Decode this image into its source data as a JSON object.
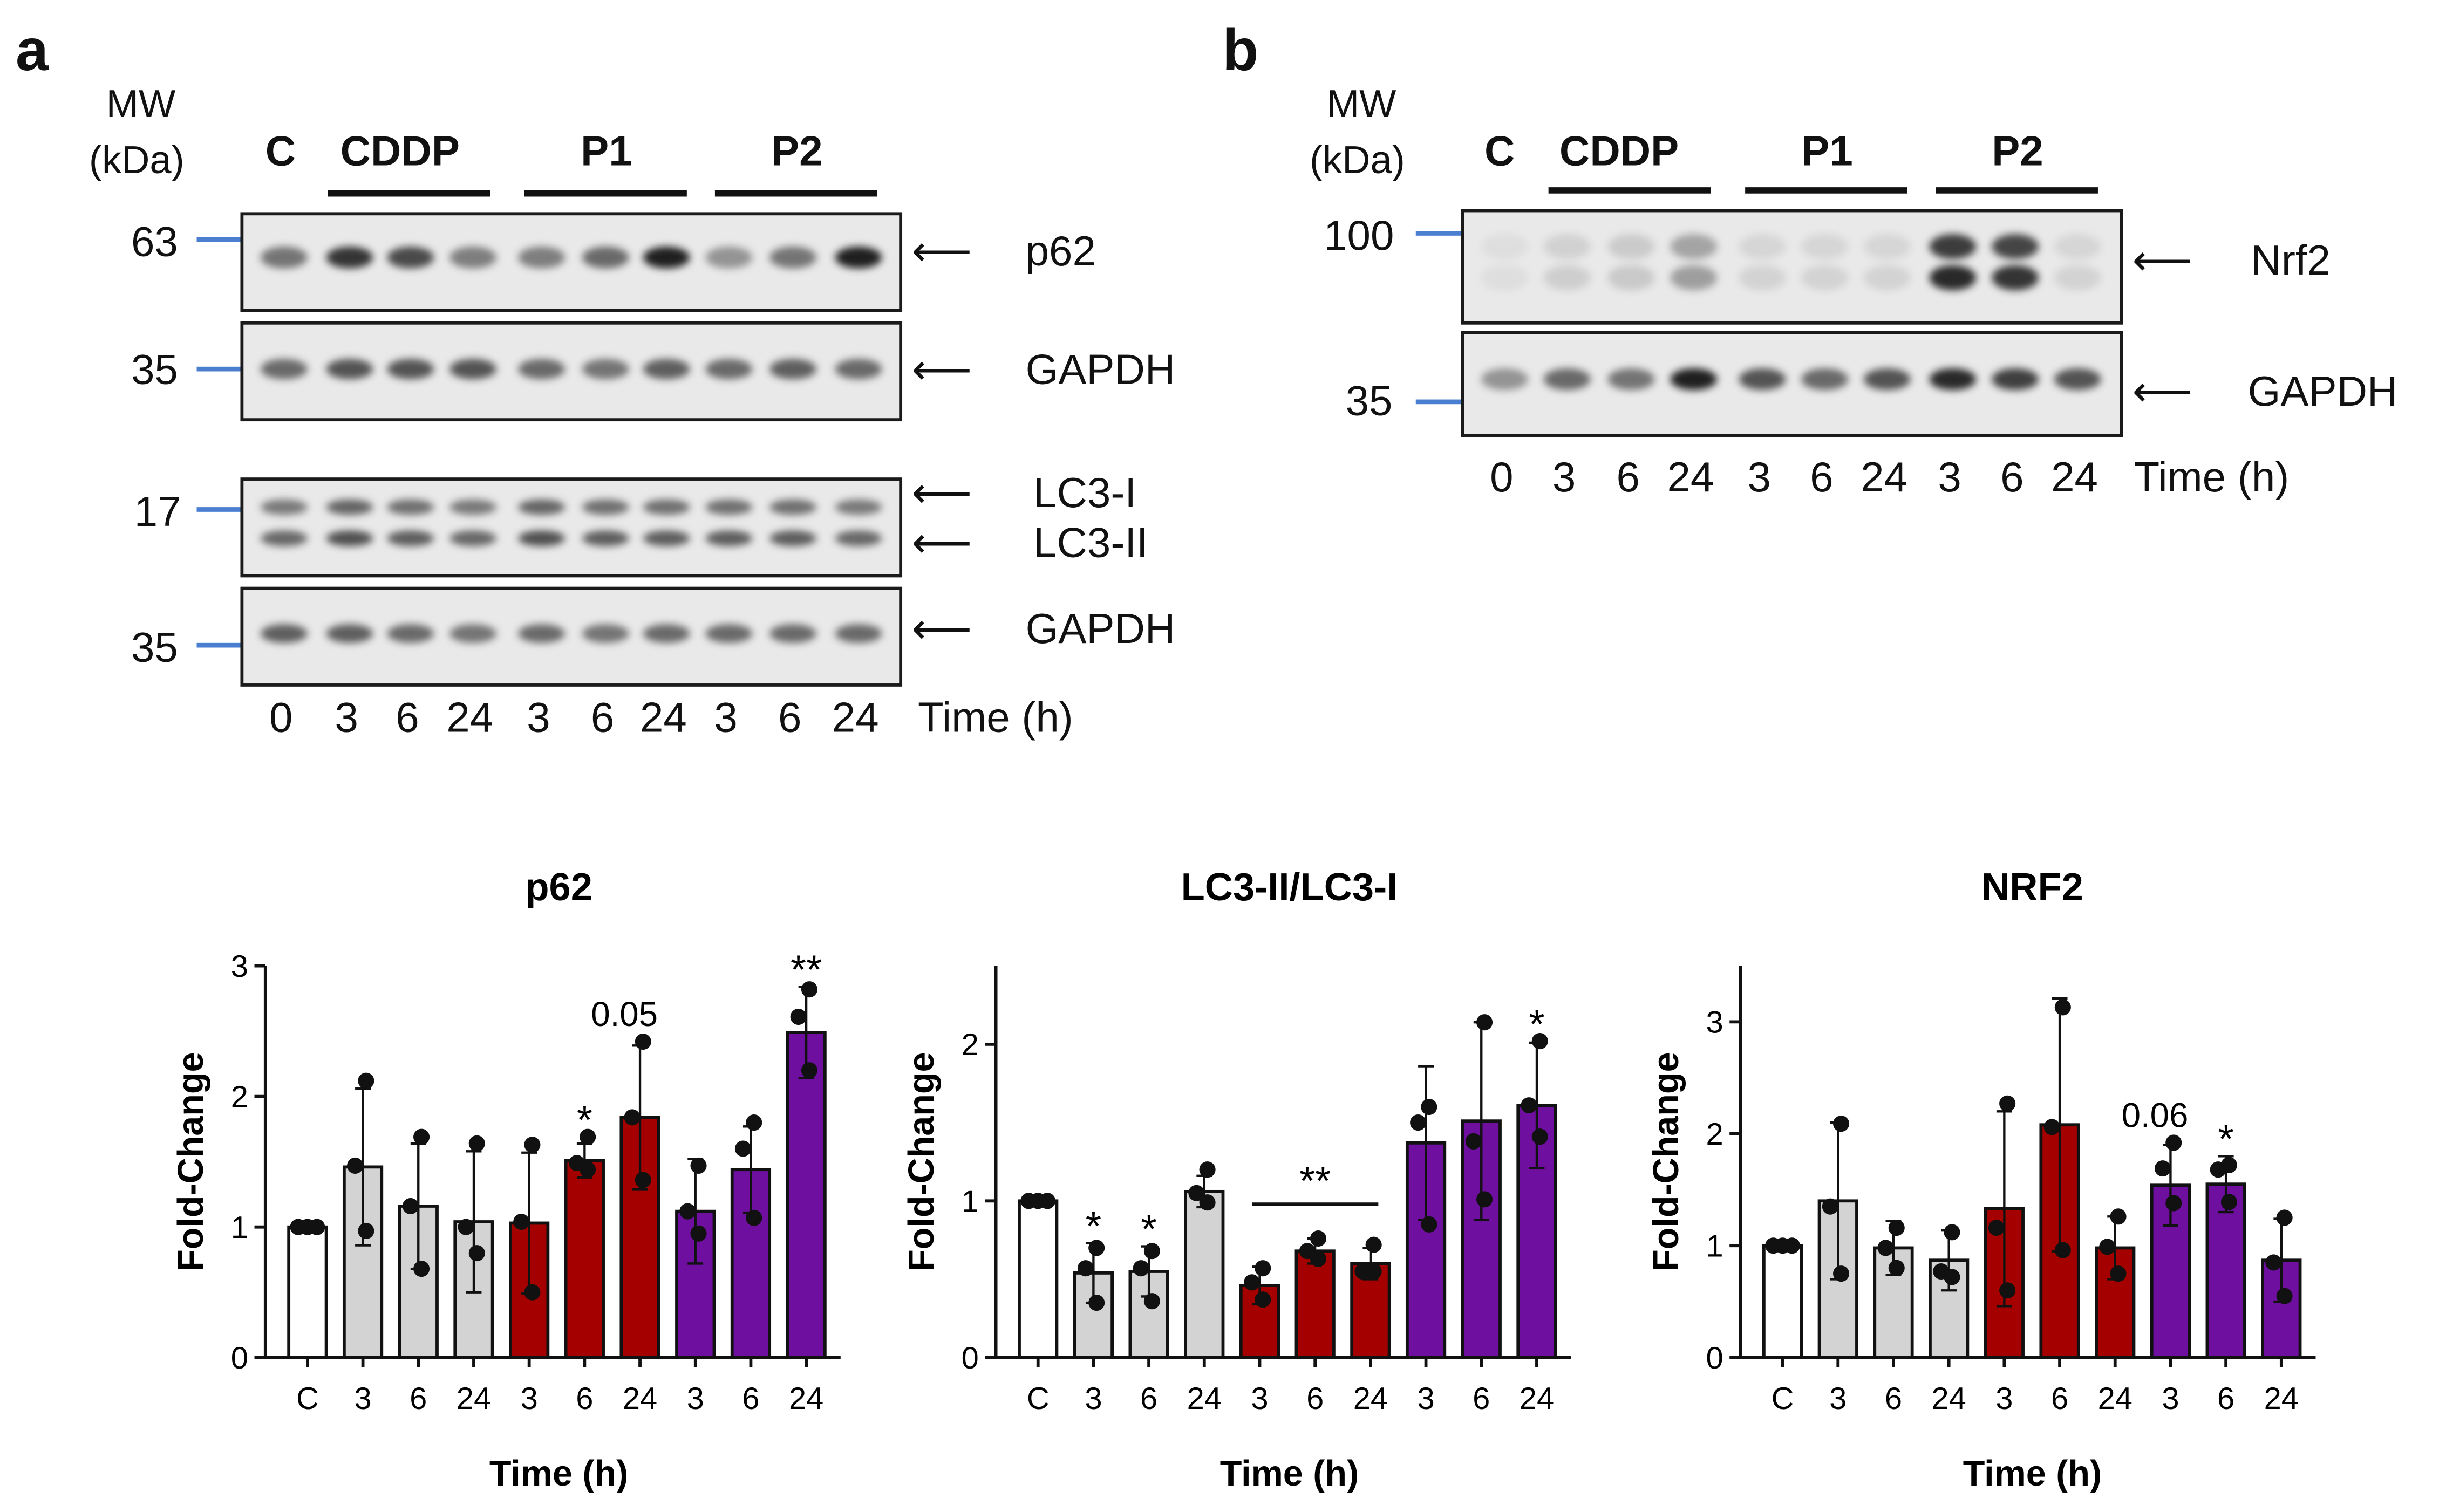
{
  "panel_a": {
    "letter": "a",
    "mw_header": [
      "MW",
      "(kDa)"
    ],
    "lane_headers": [
      "C",
      "CDDP",
      "P1",
      "P2"
    ],
    "blots": [
      {
        "name": "p62",
        "mw": "63",
        "labels": [
          "p62"
        ],
        "bands": [
          0.55,
          0.85,
          0.75,
          0.5,
          0.5,
          0.6,
          0.95,
          0.4,
          0.55,
          0.95
        ]
      },
      {
        "name": "GAPDH",
        "mw": "35",
        "labels": [
          "GAPDH"
        ],
        "bands": [
          0.6,
          0.7,
          0.7,
          0.7,
          0.6,
          0.55,
          0.65,
          0.6,
          0.65,
          0.6
        ]
      },
      {
        "name": "LC3",
        "mw": "17",
        "labels": [
          "LC3-I",
          "LC3-II"
        ],
        "bands": [
          0.55,
          0.65,
          0.6,
          0.55,
          0.65,
          0.6,
          0.6,
          0.6,
          0.6,
          0.55
        ]
      },
      {
        "name": "GAPDH",
        "mw": "35",
        "labels": [
          "GAPDH"
        ],
        "bands": [
          0.65,
          0.65,
          0.6,
          0.55,
          0.6,
          0.55,
          0.6,
          0.6,
          0.6,
          0.6
        ]
      }
    ],
    "time_labels": [
      "0",
      "3",
      "6",
      "24",
      "3",
      "6",
      "24",
      "3",
      "6",
      "24"
    ],
    "time_title": "Time (h)"
  },
  "panel_b": {
    "letter": "b",
    "mw_header": [
      "MW",
      "(kDa)"
    ],
    "lane_headers": [
      "C",
      "CDDP",
      "P1",
      "P2"
    ],
    "blots": [
      {
        "name": "Nrf2",
        "mw": "100",
        "labels": [
          "Nrf2"
        ],
        "bands": [
          0.05,
          0.12,
          0.15,
          0.35,
          0.1,
          0.1,
          0.1,
          0.9,
          0.85,
          0.1
        ]
      },
      {
        "name": "GAPDH",
        "mw": "35",
        "labels": [
          "GAPDH"
        ],
        "bands": [
          0.4,
          0.6,
          0.55,
          0.95,
          0.7,
          0.6,
          0.7,
          0.9,
          0.8,
          0.7
        ]
      }
    ],
    "time_labels": [
      "0",
      "3",
      "6",
      "24",
      "3",
      "6",
      "24",
      "3",
      "6",
      "24"
    ],
    "time_title": "Time (h)"
  },
  "colors": {
    "control": "#ffffff",
    "CDDP": "#d3d3d3",
    "P1": "#a50000",
    "P2": "#6f0fa0",
    "mw_tick": "#4a7fd0"
  },
  "chart_data": [
    {
      "type": "bar",
      "title": "p62",
      "xlabel": "Time (h)",
      "ylabel": "Fold-Change",
      "ylim": [
        0,
        3
      ],
      "yticks": [
        "0",
        "1",
        "2",
        "3"
      ],
      "categories": [
        "C",
        "3",
        "6",
        "24",
        "3",
        "6",
        "24",
        "3",
        "6",
        "24"
      ],
      "groups": [
        "control",
        "CDDP",
        "CDDP",
        "CDDP",
        "P1",
        "P1",
        "P1",
        "P2",
        "P2",
        "P2"
      ],
      "values": [
        1.0,
        1.46,
        1.16,
        1.04,
        1.03,
        1.51,
        1.84,
        1.12,
        1.44,
        2.49
      ],
      "errors": [
        0.0,
        0.6,
        0.48,
        0.54,
        0.54,
        0.13,
        0.55,
        0.4,
        0.33,
        0.35
      ],
      "points": [
        [
          1.0,
          1.0,
          1.0
        ],
        [
          2.12,
          1.47,
          0.97
        ],
        [
          1.69,
          1.16,
          0.68
        ],
        [
          1.64,
          1.0,
          0.8
        ],
        [
          1.63,
          1.04,
          0.5
        ],
        [
          1.69,
          1.49,
          1.44
        ],
        [
          2.42,
          1.84,
          1.36
        ],
        [
          1.47,
          1.12,
          0.95
        ],
        [
          1.8,
          1.6,
          1.07
        ],
        [
          2.82,
          2.61,
          2.2
        ]
      ],
      "annotations": [
        {
          "index": 5,
          "text": "*"
        },
        {
          "index": 6,
          "text": "0.05"
        },
        {
          "index": 9,
          "text": "**"
        }
      ]
    },
    {
      "type": "bar",
      "title": "LC3-II/LC3-I",
      "xlabel": "Time (h)",
      "ylabel": "Fold-Change",
      "ylim": [
        0,
        2.5
      ],
      "yticks": [
        "0",
        "1",
        "2"
      ],
      "categories": [
        "C",
        "3",
        "6",
        "24",
        "3",
        "6",
        "24",
        "3",
        "6",
        "24"
      ],
      "groups": [
        "control",
        "CDDP",
        "CDDP",
        "CDDP",
        "P1",
        "P1",
        "P1",
        "P2",
        "P2",
        "P2"
      ],
      "values": [
        1.0,
        0.54,
        0.55,
        1.06,
        0.46,
        0.68,
        0.6,
        1.37,
        1.51,
        1.61
      ],
      "errors": [
        0.0,
        0.19,
        0.16,
        0.1,
        0.12,
        0.08,
        0.1,
        0.49,
        0.63,
        0.4
      ],
      "points": [
        [
          1.0,
          1.0,
          1.0
        ],
        [
          0.7,
          0.57,
          0.35
        ],
        [
          0.68,
          0.57,
          0.36
        ],
        [
          1.2,
          1.05,
          0.99
        ],
        [
          0.57,
          0.48,
          0.37
        ],
        [
          0.76,
          0.68,
          0.63
        ],
        [
          0.72,
          0.55,
          0.55
        ],
        [
          1.6,
          1.5,
          0.85
        ],
        [
          2.14,
          1.38,
          1.01
        ],
        [
          2.02,
          1.61,
          1.41
        ]
      ],
      "annotations": [
        {
          "index": 1,
          "text": "*"
        },
        {
          "index": 2,
          "text": "*"
        },
        {
          "index": 9,
          "text": "*"
        }
      ],
      "brackets": [
        {
          "from": 4,
          "to": 6,
          "text": "**"
        }
      ]
    },
    {
      "type": "bar",
      "title": "NRF2",
      "xlabel": "Time (h)",
      "ylabel": "Fold-Change",
      "ylim": [
        0,
        3.5
      ],
      "yticks": [
        "0",
        "1",
        "2",
        "3"
      ],
      "categories": [
        "C",
        "3",
        "6",
        "24",
        "3",
        "6",
        "24",
        "3",
        "6",
        "24"
      ],
      "groups": [
        "control",
        "CDDP",
        "CDDP",
        "CDDP",
        "P1",
        "P1",
        "P1",
        "P2",
        "P2",
        "P2"
      ],
      "values": [
        1.0,
        1.4,
        0.98,
        0.87,
        1.33,
        2.08,
        0.98,
        1.54,
        1.55,
        0.87
      ],
      "errors": [
        0.0,
        0.7,
        0.24,
        0.27,
        0.87,
        1.13,
        0.28,
        0.36,
        0.25,
        0.37
      ],
      "points": [
        [
          1.0,
          1.0,
          1.0
        ],
        [
          2.09,
          1.35,
          0.75
        ],
        [
          1.16,
          0.98,
          0.8
        ],
        [
          1.12,
          0.77,
          0.72
        ],
        [
          2.27,
          1.16,
          0.6
        ],
        [
          3.13,
          2.06,
          0.96
        ],
        [
          1.26,
          0.99,
          0.75
        ],
        [
          1.92,
          1.69,
          1.38
        ],
        [
          1.72,
          1.68,
          1.39
        ],
        [
          1.25,
          0.85,
          0.55
        ]
      ],
      "annotations": [
        {
          "index": 7,
          "text": "0.06"
        },
        {
          "index": 8,
          "text": "*"
        }
      ]
    }
  ]
}
